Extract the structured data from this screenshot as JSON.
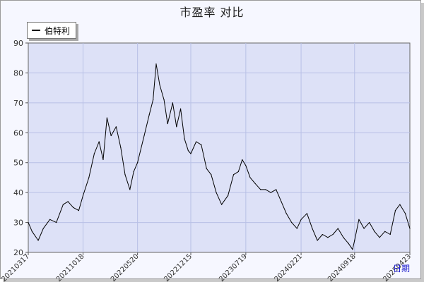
{
  "title": "市盈率  对比",
  "chart_data": {
    "type": "line",
    "title": "市盈率  对比",
    "xlabel": "日期",
    "ylabel": "",
    "ylim": [
      20,
      90
    ],
    "yticks": [
      20,
      30,
      40,
      50,
      60,
      70,
      80,
      90
    ],
    "grid": true,
    "legend": "top-left",
    "x_ticks": [
      "20210317",
      "20211018",
      "20220520",
      "20221215",
      "20230719",
      "20240221",
      "20240918",
      "20250423"
    ],
    "series": [
      {
        "name": "伯特利",
        "color": "#000000",
        "points": [
          [
            "20210317",
            30
          ],
          [
            "20210401",
            27
          ],
          [
            "20210425",
            24
          ],
          [
            "20210515",
            28
          ],
          [
            "20210610",
            31
          ],
          [
            "20210705",
            30
          ],
          [
            "20210801",
            36
          ],
          [
            "20210820",
            37
          ],
          [
            "20210910",
            35
          ],
          [
            "20211001",
            34
          ],
          [
            "20211018",
            39
          ],
          [
            "20211110",
            45
          ],
          [
            "20211201",
            53
          ],
          [
            "20211220",
            57
          ],
          [
            "20220105",
            51
          ],
          [
            "20220120",
            65
          ],
          [
            "20220205",
            59
          ],
          [
            "20220225",
            62
          ],
          [
            "20220315",
            55
          ],
          [
            "20220401",
            46
          ],
          [
            "20220420",
            41
          ],
          [
            "20220505",
            47
          ],
          [
            "20220520",
            50
          ],
          [
            "20220615",
            59
          ],
          [
            "20220705",
            66
          ],
          [
            "20220720",
            71
          ],
          [
            "20220801",
            83
          ],
          [
            "20220815",
            76
          ],
          [
            "20220901",
            71
          ],
          [
            "20220915",
            63
          ],
          [
            "20221005",
            70
          ],
          [
            "20221020",
            62
          ],
          [
            "20221105",
            68
          ],
          [
            "20221120",
            58
          ],
          [
            "20221205",
            54
          ],
          [
            "20221215",
            53
          ],
          [
            "20230105",
            57
          ],
          [
            "20230125",
            56
          ],
          [
            "20230215",
            48
          ],
          [
            "20230305",
            46
          ],
          [
            "20230325",
            40
          ],
          [
            "20230415",
            36
          ],
          [
            "20230510",
            39
          ],
          [
            "20230601",
            46
          ],
          [
            "20230620",
            47
          ],
          [
            "20230705",
            51
          ],
          [
            "20230719",
            49
          ],
          [
            "20230805",
            45
          ],
          [
            "20230825",
            43
          ],
          [
            "20230915",
            41
          ],
          [
            "20231005",
            41
          ],
          [
            "20231025",
            40
          ],
          [
            "20231115",
            41
          ],
          [
            "20231205",
            37
          ],
          [
            "20231225",
            33
          ],
          [
            "20240115",
            30
          ],
          [
            "20240205",
            28
          ],
          [
            "20240221",
            31
          ],
          [
            "20240315",
            33
          ],
          [
            "20240405",
            28
          ],
          [
            "20240425",
            24
          ],
          [
            "20240515",
            26
          ],
          [
            "20240605",
            25
          ],
          [
            "20240625",
            26
          ],
          [
            "20240715",
            28
          ],
          [
            "20240805",
            25
          ],
          [
            "20240825",
            23
          ],
          [
            "20240910",
            21
          ],
          [
            "20240918",
            24
          ],
          [
            "20241005",
            31
          ],
          [
            "20241025",
            28
          ],
          [
            "20241115",
            30
          ],
          [
            "20241205",
            27
          ],
          [
            "20241225",
            25
          ],
          [
            "20250115",
            27
          ],
          [
            "20250205",
            26
          ],
          [
            "20250225",
            34
          ],
          [
            "20250315",
            36
          ],
          [
            "20250405",
            33
          ],
          [
            "20250423",
            28
          ]
        ]
      }
    ]
  }
}
